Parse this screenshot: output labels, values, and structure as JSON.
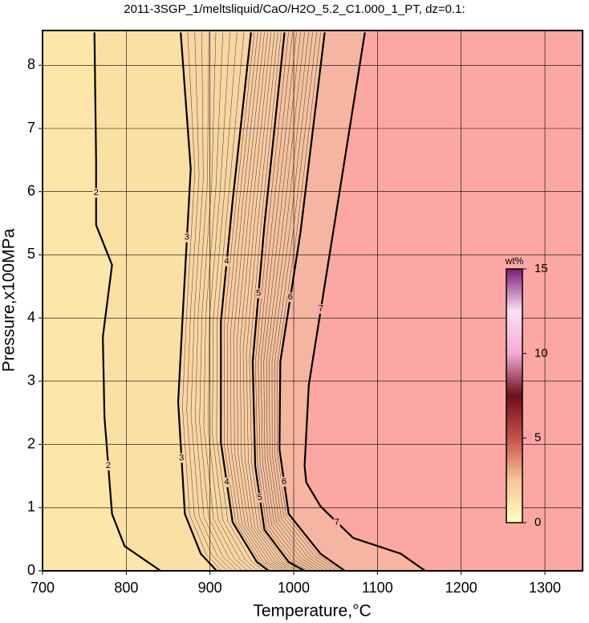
{
  "chart_data": {
    "type": "contour",
    "title": "2011-3SGP_1/meltsliquid/CaO/H2O_5.2_C1.000_1_PT, dz=0.1:",
    "xlabel": "Temperature,°C",
    "ylabel": "Pressure,x100MPa",
    "xlim": [
      700,
      1345
    ],
    "ylim": [
      0,
      8.55
    ],
    "xticks": [
      700,
      800,
      900,
      1000,
      1100,
      1200,
      1300
    ],
    "yticks": [
      0,
      1,
      2,
      3,
      4,
      5,
      6,
      7,
      8
    ],
    "grid": true,
    "background": "#fde7a8",
    "contours": [
      {
        "level": 2,
        "fill": "#fbe0a4",
        "x": [
          762,
          764,
          764,
          783,
          772,
          774,
          783,
          798,
          841
        ],
        "y": [
          8.52,
          6.49,
          5.47,
          4.84,
          3.7,
          2.43,
          0.9,
          0.39,
          0
        ]
      },
      {
        "level": 3,
        "fill": "#f9d5a2",
        "x": [
          865,
          877,
          868,
          862,
          870,
          889,
          908
        ],
        "y": [
          8.52,
          6.36,
          4.19,
          2.67,
          0.9,
          0.27,
          0
        ]
      },
      {
        "level": 4,
        "fill": "#f8cca0",
        "x": [
          949,
          927,
          913,
          913,
          927,
          956,
          970
        ],
        "y": [
          8.52,
          5.85,
          3.94,
          2.03,
          0.77,
          0.14,
          0
        ]
      },
      {
        "level": 5,
        "fill": "#f6c19e",
        "x": [
          989,
          965,
          951,
          954,
          965,
          994,
          1013
        ],
        "y": [
          8.52,
          5.47,
          3.31,
          1.66,
          0.65,
          0.14,
          0
        ]
      },
      {
        "level": 6,
        "fill": "#f5b5a0",
        "x": [
          1037,
          1008,
          984,
          983,
          994,
          1032,
          1061
        ],
        "y": [
          8.52,
          5.35,
          3.31,
          1.92,
          0.9,
          0.27,
          0
        ]
      },
      {
        "level": 7,
        "fill": "#fca7a3",
        "x": [
          1085,
          1047,
          1018,
          1013,
          1015,
          1032,
          1071,
          1128,
          1157
        ],
        "y": [
          8.52,
          5.35,
          2.94,
          1.66,
          1.4,
          1.02,
          0.52,
          0.27,
          0
        ]
      }
    ],
    "colorbar": {
      "label": "wt%",
      "lim": [
        0,
        15
      ],
      "ticks": [
        0,
        5,
        10,
        15
      ],
      "colors": [
        "#ffffc0",
        "#f8c49a",
        "#c8504a",
        "#6a0f1a",
        "#f6a8d8",
        "#fbe0f4",
        "#7a1a78"
      ]
    }
  }
}
